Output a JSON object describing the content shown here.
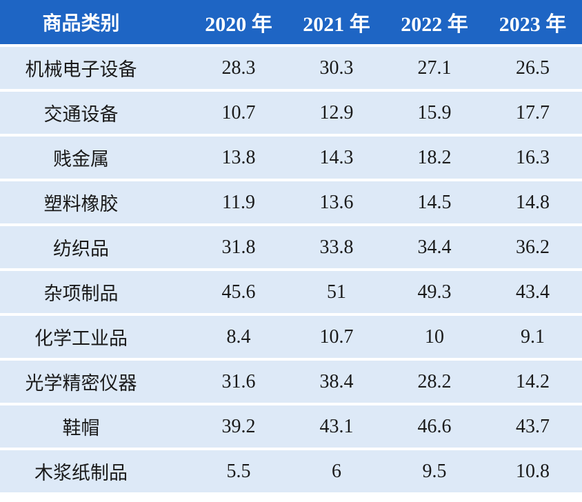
{
  "colors": {
    "header_bg": "#1e65c4",
    "header_text": "#ffffff",
    "row_bg": "#dde9f7",
    "cell_text": "#1a1a1a"
  },
  "chart_data": {
    "type": "table",
    "columns": [
      "商品类别",
      "2020 年",
      "2021 年",
      "2022 年",
      "2023 年"
    ],
    "rows": [
      {
        "category": "机械电子设备",
        "values": [
          "28.3",
          "30.3",
          "27.1",
          "26.5"
        ]
      },
      {
        "category": "交通设备",
        "values": [
          "10.7",
          "12.9",
          "15.9",
          "17.7"
        ]
      },
      {
        "category": "贱金属",
        "values": [
          "13.8",
          "14.3",
          "18.2",
          "16.3"
        ]
      },
      {
        "category": "塑料橡胶",
        "values": [
          "11.9",
          "13.6",
          "14.5",
          "14.8"
        ]
      },
      {
        "category": "纺织品",
        "values": [
          "31.8",
          "33.8",
          "34.4",
          "36.2"
        ]
      },
      {
        "category": "杂项制品",
        "values": [
          "45.6",
          "51",
          "49.3",
          "43.4"
        ]
      },
      {
        "category": "化学工业品",
        "values": [
          "8.4",
          "10.7",
          "10",
          "9.1"
        ]
      },
      {
        "category": "光学精密仪器",
        "values": [
          "31.6",
          "38.4",
          "28.2",
          "14.2"
        ]
      },
      {
        "category": "鞋帽",
        "values": [
          "39.2",
          "43.1",
          "46.6",
          "43.7"
        ]
      },
      {
        "category": "木浆纸制品",
        "values": [
          "5.5",
          "6",
          "9.5",
          "10.8"
        ]
      }
    ]
  }
}
